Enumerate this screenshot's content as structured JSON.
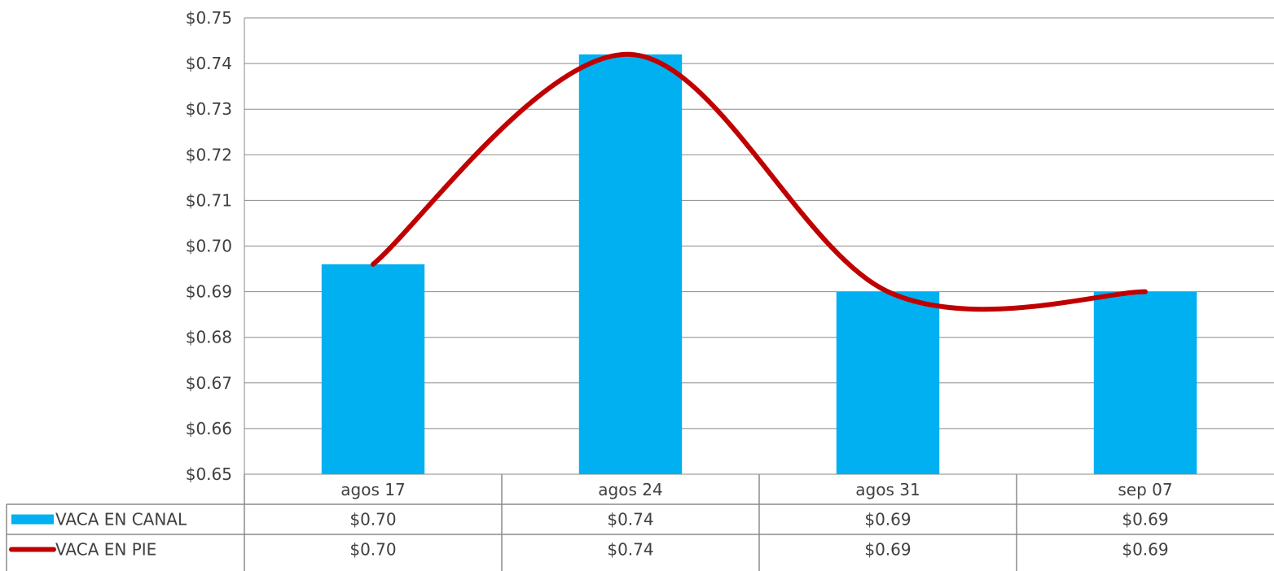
{
  "chart_data": {
    "type": "bar",
    "categories": [
      "agos 17",
      "agos 24",
      "agos 31",
      "sep 07"
    ],
    "series": [
      {
        "name": "VACA EN CANAL",
        "kind": "bar",
        "color": "#00B0F0",
        "values": [
          0.696,
          0.742,
          0.69,
          0.69
        ],
        "labels": [
          "$0.70",
          "$0.74",
          "$0.69",
          "$0.69"
        ]
      },
      {
        "name": "VACA EN PIE",
        "kind": "line",
        "smooth": true,
        "color": "#C00000",
        "values": [
          0.696,
          0.742,
          0.69,
          0.69
        ],
        "labels": [
          "$0.70",
          "$0.74",
          "$0.69",
          "$0.69"
        ]
      }
    ],
    "ylim": [
      0.65,
      0.75
    ],
    "yticks": [
      "$0.65",
      "$0.66",
      "$0.67",
      "$0.68",
      "$0.69",
      "$0.70",
      "$0.71",
      "$0.72",
      "$0.73",
      "$0.74",
      "$0.75"
    ],
    "grid": true,
    "legend": "data-table"
  }
}
